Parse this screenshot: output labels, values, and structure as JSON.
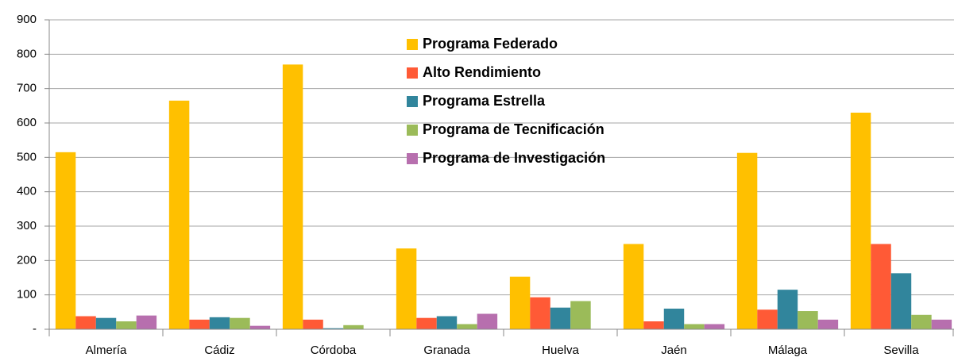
{
  "chart_data": {
    "type": "bar",
    "categories": [
      "Almería",
      "Cádiz",
      "Córdoba",
      "Granada",
      "Huelva",
      "Jaén",
      "Málaga",
      "Sevilla"
    ],
    "series": [
      {
        "name": "Programa Federado",
        "color": "#ffc000",
        "values": [
          515,
          665,
          770,
          235,
          153,
          248,
          513,
          630
        ]
      },
      {
        "name": "Alto Rendimiento",
        "color": "#ff5a36",
        "values": [
          38,
          28,
          28,
          33,
          93,
          23,
          57,
          248
        ]
      },
      {
        "name": "Programa Estrella",
        "color": "#31859c",
        "values": [
          33,
          35,
          3,
          38,
          63,
          60,
          115,
          163
        ]
      },
      {
        "name": "Programa de Tecnificación",
        "color": "#9bbb59",
        "values": [
          23,
          33,
          12,
          15,
          82,
          15,
          53,
          42
        ]
      },
      {
        "name": "Programa de Investigación",
        "color": "#b76fae",
        "values": [
          40,
          10,
          0,
          45,
          0,
          15,
          28,
          28
        ]
      }
    ],
    "ylim": [
      0,
      900
    ],
    "yticks": [
      {
        "value": 0,
        "label": "-"
      },
      100,
      200,
      300,
      400,
      500,
      600,
      700,
      800,
      900
    ],
    "grid": true,
    "legend": "top-center"
  }
}
